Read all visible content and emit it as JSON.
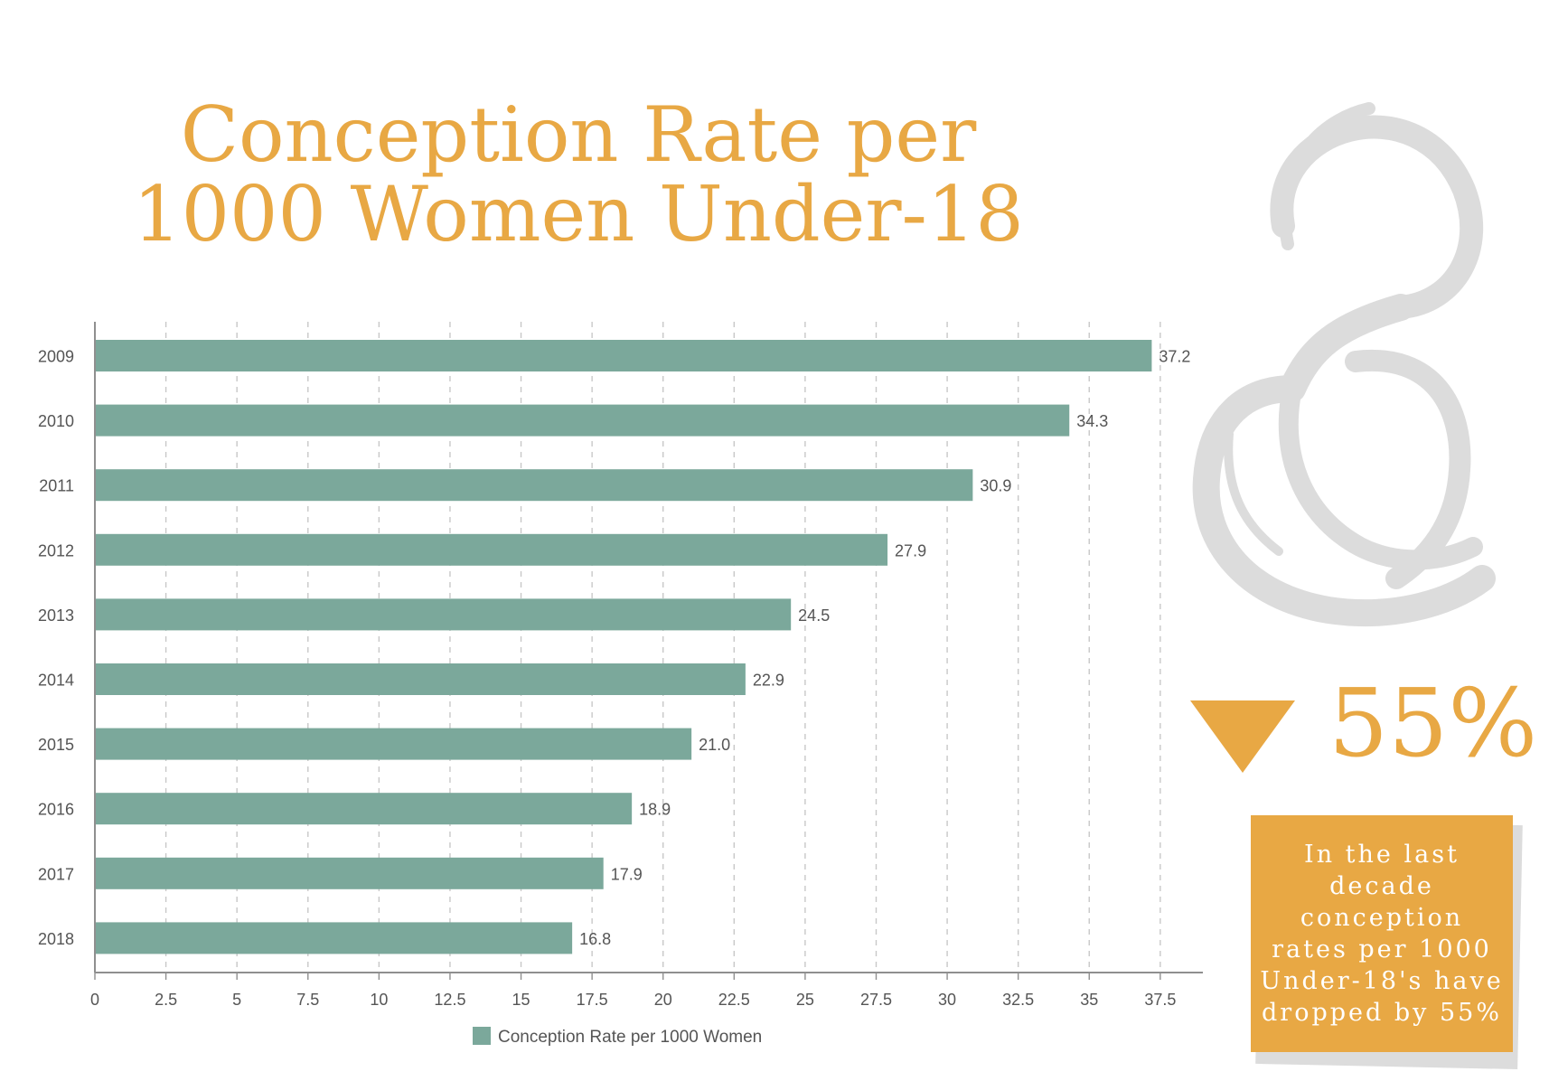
{
  "title_lines": [
    "Conception Rate per",
    "1000 Women Under-18"
  ],
  "callout": {
    "percent": "55%",
    "note": "In the last decade conception rates per 1000 Under-18's have dropped by 55%"
  },
  "colors": {
    "bar": "#7ba89b",
    "accent": "#e8a844",
    "grid": "#c8c8c8",
    "axis": "#8f8f8f",
    "label": "#555555"
  },
  "chart_data": {
    "type": "bar",
    "orientation": "horizontal",
    "categories": [
      "2009",
      "2010",
      "2011",
      "2012",
      "2013",
      "2014",
      "2015",
      "2016",
      "2017",
      "2018"
    ],
    "series": [
      {
        "name": "Conception Rate per 1000 Women",
        "values": [
          37.2,
          34.3,
          30.9,
          27.9,
          24.5,
          22.9,
          21.0,
          18.9,
          17.9,
          16.8
        ],
        "labels": [
          "37.2",
          "34.3",
          "30.9",
          "27.9",
          "24.5",
          "22.9",
          "21.0",
          "18.9",
          "17.9",
          "16.8"
        ]
      }
    ],
    "xlim": [
      0,
      39
    ],
    "x_ticks": [
      "0",
      "2.5",
      "5",
      "7.5",
      "10",
      "12.5",
      "15",
      "17.5",
      "20",
      "22.5",
      "25",
      "27.5",
      "30",
      "32.5",
      "35",
      "37.5"
    ],
    "grid": "vertical dashed",
    "legend_position": "bottom"
  }
}
